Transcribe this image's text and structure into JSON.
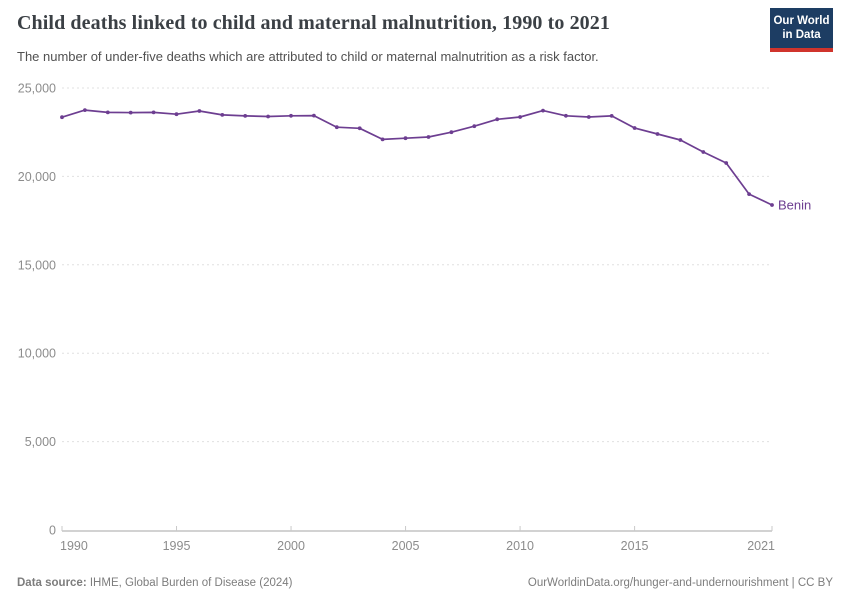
{
  "header": {
    "title": "Child deaths linked to child and maternal malnutrition, 1990 to 2021",
    "subtitle": "The number of under-five deaths which are attributed to child or maternal malnutrition as a risk factor.",
    "logo": {
      "line1": "Our World",
      "line2": "in Data"
    }
  },
  "chart_data": {
    "type": "line",
    "title": "Child deaths linked to child and maternal malnutrition, 1990 to 2021",
    "xlabel": "",
    "ylabel": "",
    "xlim": [
      1990,
      2021
    ],
    "ylim": [
      0,
      25000
    ],
    "grid": "horizontal-dashed",
    "legend_position": "end-of-line-label",
    "x_ticks": [
      1990,
      1995,
      2000,
      2005,
      2010,
      2015,
      2021
    ],
    "y_ticks": [
      0,
      5000,
      10000,
      15000,
      20000,
      25000
    ],
    "y_tick_labels": [
      "0",
      "5,000",
      "10,000",
      "15,000",
      "20,000",
      "25,000"
    ],
    "end_label": "Benin",
    "series": [
      {
        "name": "Benin",
        "color": "#6d3e91",
        "x": [
          1990,
          1991,
          1992,
          1993,
          1994,
          1995,
          1996,
          1997,
          1998,
          1999,
          2000,
          2001,
          2002,
          2003,
          2004,
          2005,
          2006,
          2007,
          2008,
          2009,
          2010,
          2011,
          2012,
          2013,
          2014,
          2015,
          2016,
          2017,
          2018,
          2019,
          2020,
          2021
        ],
        "values": [
          23350,
          23750,
          23620,
          23610,
          23620,
          23520,
          23700,
          23480,
          23420,
          23390,
          23430,
          23440,
          22780,
          22720,
          22090,
          22160,
          22230,
          22500,
          22840,
          23230,
          23360,
          23720,
          23430,
          23360,
          23420,
          22740,
          22400,
          22060,
          21380,
          20760,
          19000,
          18380
        ]
      }
    ]
  },
  "footer": {
    "source_label": "Data source:",
    "source_text": " IHME, Global Burden of Disease (2024)",
    "right_text": "OurWorldinData.org/hunger-and-undernourishment | CC BY"
  },
  "colors": {
    "series": "#6d3e91",
    "grid": "#e0e0e0",
    "axis": "#a5a5a5",
    "tick": "#c9c9c9",
    "tick_label": "#8c8c8c",
    "logo_bg": "#1d3d63",
    "logo_accent": "#d0342c"
  }
}
